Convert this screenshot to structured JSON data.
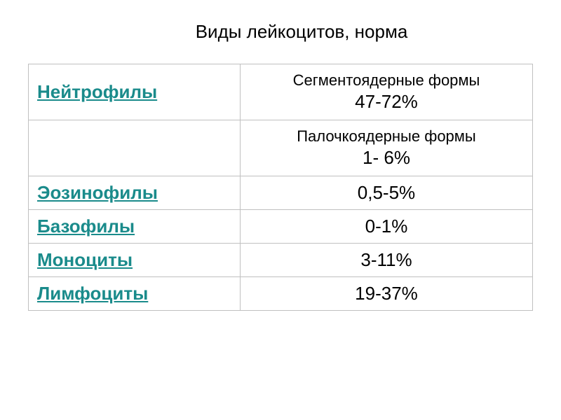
{
  "title": "Виды лейкоцитов, норма",
  "table": {
    "rows": [
      {
        "label": "Нейтрофилы",
        "form_label": "Сегментоядерные формы",
        "value": "47-72%"
      },
      {
        "label": "",
        "form_label": "Палочкоядерные формы",
        "value": "1- 6%"
      },
      {
        "label": "Эозинофилы",
        "value": "0,5-5%"
      },
      {
        "label": "Базофилы",
        "value": "0-1%"
      },
      {
        "label": "Моноциты",
        "value": "3-11%"
      },
      {
        "label": "Лимфоциты",
        "value": "19-37%"
      }
    ]
  },
  "colors": {
    "link_color": "#1a8b8b",
    "border_color": "#c0c0c0",
    "text_color": "#000000",
    "background": "#ffffff"
  }
}
